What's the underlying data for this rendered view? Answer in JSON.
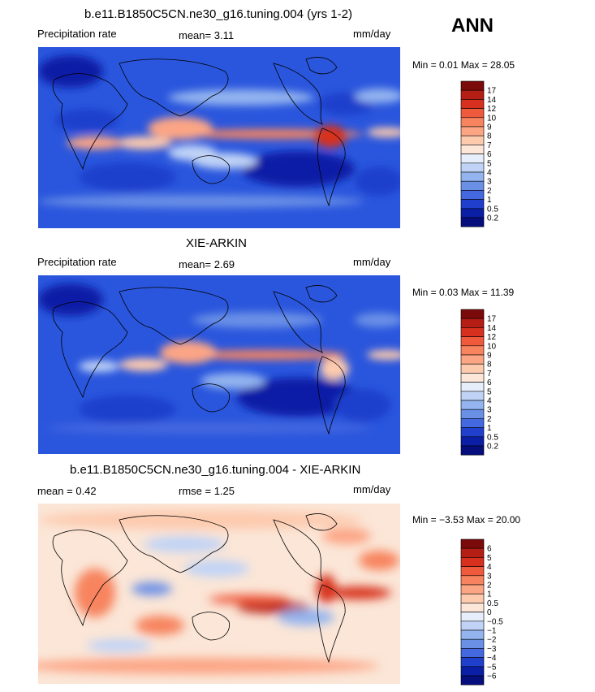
{
  "season_label": "ANN",
  "chart_data": [
    {
      "type": "heatmap",
      "title": "b.e11.B1850C5CN.ne30_g16.tuning.004 (yrs 1-2)",
      "left_label": "Precipitation rate",
      "center_label": "mean=   3.11",
      "units": "mm/day",
      "mean": 3.11,
      "range_text": "Min =    0.01  Max =  28.05",
      "min": 0.01,
      "max": 28.05,
      "colorbar_labels": [
        "17",
        "14",
        "12",
        "10",
        "9",
        "8",
        "7",
        "6",
        "5",
        "4",
        "3",
        "2",
        "1",
        "0.5",
        "0.2"
      ],
      "colors": [
        "#7b0a0a",
        "#b51e14",
        "#d7301f",
        "#ef5a3c",
        "#f7845e",
        "#fca585",
        "#fdcaae",
        "#fbe6d7",
        "#e7eefb",
        "#c0d3f6",
        "#93b4ef",
        "#6a90e6",
        "#4468e0",
        "#1f3fcc",
        "#0a1ea6",
        "#050e7c"
      ],
      "x_range": [
        0,
        360
      ],
      "y_range": [
        -90,
        90
      ]
    },
    {
      "type": "heatmap",
      "title": "XIE-ARKIN",
      "left_label": "Precipitation rate",
      "center_label": "mean=   2.69",
      "units": "mm/day",
      "mean": 2.69,
      "range_text": "Min =    0.03  Max =  11.39",
      "min": 0.03,
      "max": 11.39,
      "colorbar_labels": [
        "17",
        "14",
        "12",
        "10",
        "9",
        "8",
        "7",
        "6",
        "5",
        "4",
        "3",
        "2",
        "1",
        "0.5",
        "0.2"
      ],
      "colors": [
        "#7b0a0a",
        "#b51e14",
        "#d7301f",
        "#ef5a3c",
        "#f7845e",
        "#fca585",
        "#fdcaae",
        "#fbe6d7",
        "#e7eefb",
        "#c0d3f6",
        "#93b4ef",
        "#6a90e6",
        "#4468e0",
        "#1f3fcc",
        "#0a1ea6",
        "#050e7c"
      ],
      "x_range": [
        0,
        360
      ],
      "y_range": [
        -90,
        90
      ]
    },
    {
      "type": "heatmap",
      "title": "b.e11.B1850C5CN.ne30_g16.tuning.004 - XIE-ARKIN",
      "left_label": "mean =    0.42",
      "center_label": "rmse =     1.25",
      "units": "mm/day",
      "mean": 0.42,
      "rmse": 1.25,
      "range_text": "Min =  −3.53  Max =  20.00",
      "min": -3.53,
      "max": 20.0,
      "colorbar_labels": [
        "6",
        "5",
        "4",
        "3",
        "2",
        "1",
        "0.5",
        "0",
        "−0.5",
        "−1",
        "−2",
        "−3",
        "−4",
        "−5",
        "−6"
      ],
      "colors": [
        "#7b0a0a",
        "#b51e14",
        "#d7301f",
        "#ef5a3c",
        "#f7845e",
        "#fca585",
        "#fdcaae",
        "#fbe6d7",
        "#e7eefb",
        "#c0d3f6",
        "#93b4ef",
        "#6a90e6",
        "#4468e0",
        "#1f3fcc",
        "#0a1ea6",
        "#050e7c"
      ],
      "x_range": [
        0,
        360
      ],
      "y_range": [
        -90,
        90
      ]
    }
  ]
}
